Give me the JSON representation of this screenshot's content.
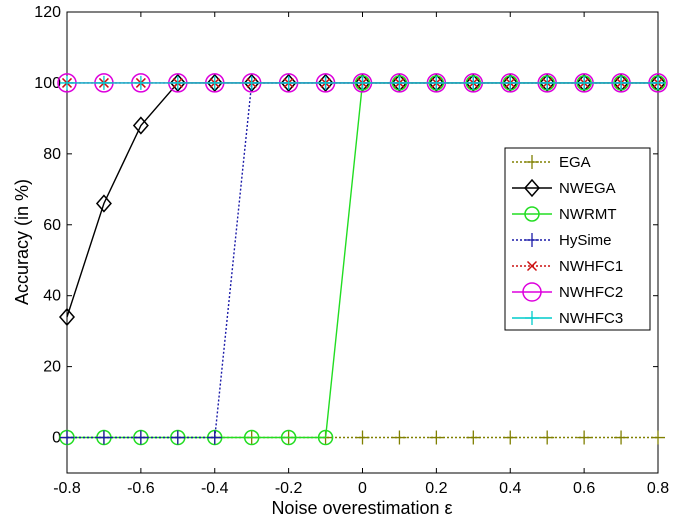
{
  "chart_data": {
    "type": "line",
    "title": "",
    "xlabel": "Noise overestimation ε",
    "ylabel": "Accuracy (in %)",
    "xlim": [
      -0.8,
      0.8
    ],
    "ylim": [
      -10,
      120
    ],
    "xticks": [
      -0.8,
      -0.6,
      -0.4,
      -0.2,
      0,
      0.2,
      0.4,
      0.6,
      0.8
    ],
    "xtick_labels": [
      "-0.8",
      "-0.6",
      "-0.4",
      "-0.2",
      "0",
      "0.2",
      "0.4",
      "0.6",
      "0.8"
    ],
    "yticks": [
      0,
      20,
      40,
      60,
      80,
      100,
      120
    ],
    "ytick_labels": [
      "0",
      "20",
      "40",
      "60",
      "80",
      "100",
      "120"
    ],
    "grid": false,
    "legend_position": "right",
    "x": [
      -0.8,
      -0.7,
      -0.6,
      -0.5,
      -0.4,
      -0.3,
      -0.2,
      -0.1,
      0,
      0.1,
      0.2,
      0.3,
      0.4,
      0.5,
      0.6,
      0.7,
      0.8
    ],
    "series": [
      {
        "name": "EGA",
        "color": "#808000",
        "dash": "2,2",
        "marker": "plus",
        "values": [
          0,
          0,
          0,
          0,
          0,
          0,
          0,
          0,
          0,
          0,
          0,
          0,
          0,
          0,
          0,
          0,
          0
        ]
      },
      {
        "name": "NWEGA",
        "color": "#000000",
        "dash": "",
        "marker": "diamond",
        "values": [
          34,
          66,
          88,
          100,
          100,
          100,
          100,
          100,
          100,
          100,
          100,
          100,
          100,
          100,
          100,
          100,
          100
        ]
      },
      {
        "name": "NWRMT",
        "color": "#22dd22",
        "dash": "",
        "marker": "circle",
        "values": [
          0,
          0,
          0,
          0,
          0,
          0,
          0,
          0,
          100,
          100,
          100,
          100,
          100,
          100,
          100,
          100,
          100
        ]
      },
      {
        "name": "HySime",
        "color": "#1a1aa8",
        "dash": "2,2",
        "marker": "plus",
        "values": [
          0,
          0,
          0,
          0,
          0,
          100,
          100,
          100,
          100,
          100,
          100,
          100,
          100,
          100,
          100,
          100,
          100
        ]
      },
      {
        "name": "NWHFC1",
        "color": "#cc1111",
        "dash": "2,2",
        "marker": "x",
        "values": [
          100,
          100,
          100,
          100,
          100,
          100,
          100,
          100,
          100,
          100,
          100,
          100,
          100,
          100,
          100,
          100,
          100
        ]
      },
      {
        "name": "NWHFC2",
        "color": "#dd00dd",
        "dash": "",
        "marker": "circle",
        "values": [
          100,
          100,
          100,
          100,
          100,
          100,
          100,
          100,
          100,
          100,
          100,
          100,
          100,
          100,
          100,
          100,
          100
        ]
      },
      {
        "name": "NWHFC3",
        "color": "#00cccc",
        "dash": "",
        "marker": "plus",
        "values": [
          100,
          100,
          100,
          100,
          100,
          100,
          100,
          100,
          100,
          100,
          100,
          100,
          100,
          100,
          100,
          100,
          100
        ]
      }
    ]
  }
}
